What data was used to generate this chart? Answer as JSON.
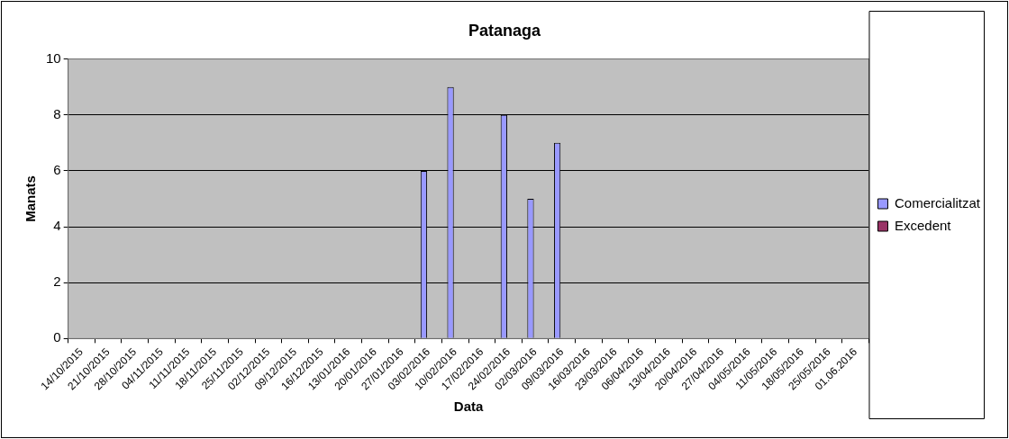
{
  "chart_data": {
    "type": "bar",
    "title": "Patanaga",
    "xlabel": "Data",
    "ylabel": "Manats",
    "categories": [
      "14/10/2015",
      "21/10/2015",
      "28/10/2015",
      "04/11/2015",
      "11/11/2015",
      "18/11/2015",
      "25/11/2015",
      "02/12/2015",
      "09/12/2015",
      "16/12/2015",
      "13/01/2016",
      "20/01/2016",
      "27/01/2016",
      "03/02/2016",
      "10/02/2016",
      "17/02/2016",
      "24/02/2016",
      "02/03/2016",
      "09/03/2016",
      "16/03/2016",
      "23/03/2016",
      "06/04/2016",
      "13/04/2016",
      "20/04/2016",
      "27/04/2016",
      "04/05/2016",
      "11/05/2016",
      "18/05/2016",
      "25/05/2016",
      "01.06.2016"
    ],
    "series": [
      {
        "name": "Comercialitzat",
        "color": "#9999ff",
        "values": [
          null,
          null,
          null,
          null,
          null,
          null,
          null,
          null,
          null,
          null,
          null,
          null,
          null,
          6,
          9,
          null,
          8,
          5,
          7,
          null,
          null,
          null,
          null,
          null,
          null,
          null,
          null,
          null,
          null,
          null
        ]
      },
      {
        "name": "Excedent",
        "color": "#993366",
        "values": [
          null,
          null,
          null,
          null,
          null,
          null,
          null,
          null,
          null,
          null,
          null,
          null,
          null,
          null,
          null,
          null,
          null,
          null,
          null,
          null,
          null,
          null,
          null,
          null,
          null,
          null,
          null,
          null,
          null,
          null
        ]
      }
    ],
    "ylim": [
      0,
      10
    ],
    "yticks": [
      0,
      2,
      4,
      6,
      8,
      10
    ],
    "grid": "y",
    "legend": "right"
  }
}
